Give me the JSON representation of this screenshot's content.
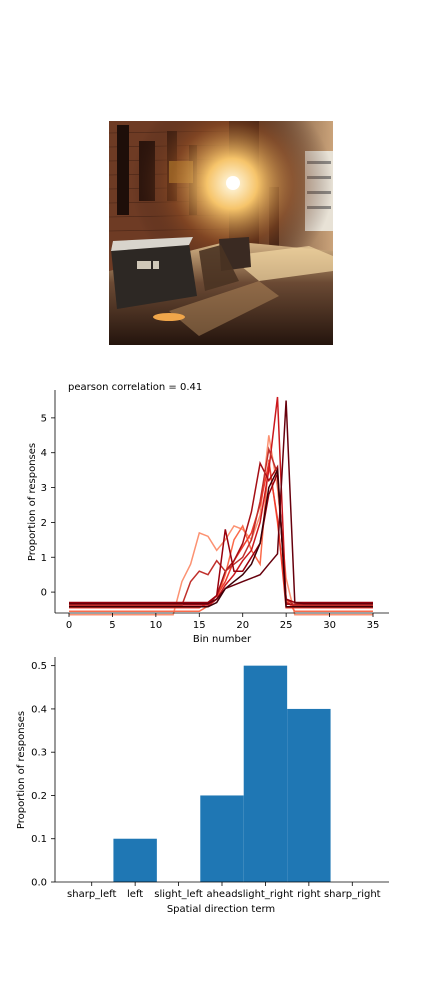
{
  "photo": {
    "description": "night alley with dumpsters and a bright street light",
    "colors": {
      "wall_dark": "#2a1410",
      "brick": "#7a4328",
      "light": "#fff6d8",
      "ground": "#3b2418"
    }
  },
  "chart_data": [
    {
      "type": "line",
      "title": "pearson correlation = 0.41",
      "xlabel": "Bin number",
      "ylabel": "Proportion of responses",
      "xlim": [
        0,
        35
      ],
      "ylim": [
        -0.6,
        5.8
      ],
      "xticks": [
        0,
        5,
        10,
        15,
        20,
        25,
        30,
        35
      ],
      "yticks": [
        0,
        1,
        2,
        3,
        4,
        5
      ],
      "x": [
        0,
        1,
        2,
        3,
        4,
        5,
        6,
        7,
        8,
        9,
        10,
        11,
        12,
        13,
        14,
        15,
        16,
        17,
        18,
        19,
        20,
        21,
        22,
        23,
        24,
        25,
        26,
        27,
        28,
        29,
        30,
        31,
        32,
        33,
        34,
        35
      ],
      "legend": "none",
      "series": [
        {
          "color": "#fc9272",
          "values": [
            -0.65,
            -0.65,
            -0.65,
            -0.65,
            -0.65,
            -0.65,
            -0.65,
            -0.65,
            -0.65,
            -0.65,
            -0.65,
            -0.65,
            -0.65,
            0.3,
            0.8,
            1.7,
            1.6,
            1.2,
            1.5,
            1.9,
            1.8,
            1.5,
            2.2,
            4.5,
            3.0,
            0.4,
            -0.65,
            -0.65,
            -0.65,
            -0.65,
            -0.65,
            -0.65,
            -0.65,
            -0.65,
            -0.65,
            -0.65
          ]
        },
        {
          "color": "#fb6a4a",
          "values": [
            -0.55,
            -0.55,
            -0.55,
            -0.55,
            -0.55,
            -0.55,
            -0.55,
            -0.55,
            -0.55,
            -0.55,
            -0.55,
            -0.55,
            -0.55,
            -0.55,
            -0.55,
            -0.55,
            -0.4,
            -0.2,
            0.5,
            1.5,
            1.9,
            1.2,
            0.8,
            3.8,
            2.0,
            -0.2,
            -0.55,
            -0.55,
            -0.55,
            -0.55,
            -0.55,
            -0.55,
            -0.55,
            -0.55,
            -0.55,
            -0.55
          ]
        },
        {
          "color": "#ef3b2c",
          "values": [
            -0.45,
            -0.45,
            -0.45,
            -0.45,
            -0.45,
            -0.45,
            -0.45,
            -0.45,
            -0.45,
            -0.45,
            -0.45,
            -0.45,
            -0.45,
            -0.45,
            -0.45,
            -0.45,
            -0.3,
            -0.1,
            0.3,
            0.9,
            1.3,
            1.7,
            2.5,
            3.7,
            2.1,
            -0.45,
            -0.45,
            -0.45,
            -0.45,
            -0.45,
            -0.45,
            -0.45,
            -0.45,
            -0.45,
            -0.45,
            -0.45
          ]
        },
        {
          "color": "#cb181d",
          "values": [
            -0.4,
            -0.4,
            -0.4,
            -0.4,
            -0.4,
            -0.4,
            -0.4,
            -0.4,
            -0.4,
            -0.4,
            -0.4,
            -0.4,
            -0.4,
            -0.4,
            -0.4,
            -0.4,
            -0.4,
            -0.2,
            0.2,
            0.5,
            0.9,
            1.2,
            2.0,
            3.5,
            5.6,
            -0.3,
            -0.4,
            -0.4,
            -0.4,
            -0.4,
            -0.4,
            -0.4,
            -0.4,
            -0.4,
            -0.4,
            -0.4
          ]
        },
        {
          "color": "#a50f15",
          "values": [
            -0.35,
            -0.35,
            -0.35,
            -0.35,
            -0.35,
            -0.35,
            -0.35,
            -0.35,
            -0.35,
            -0.35,
            -0.35,
            -0.35,
            -0.35,
            -0.35,
            -0.35,
            -0.35,
            -0.35,
            -0.1,
            0.6,
            0.9,
            1.4,
            2.3,
            3.7,
            3.2,
            3.6,
            -0.35,
            -0.35,
            -0.35,
            -0.35,
            -0.35,
            -0.35,
            -0.35,
            -0.35,
            -0.35,
            -0.35,
            -0.35
          ]
        },
        {
          "color": "#c0302c",
          "values": [
            -0.38,
            -0.38,
            -0.38,
            -0.38,
            -0.38,
            -0.38,
            -0.38,
            -0.38,
            -0.38,
            -0.38,
            -0.38,
            -0.38,
            -0.38,
            -0.38,
            0.3,
            0.6,
            0.5,
            0.9,
            0.6,
            0.8,
            1.0,
            1.5,
            2.6,
            4.1,
            3.4,
            -0.2,
            -0.38,
            -0.38,
            -0.38,
            -0.38,
            -0.38,
            -0.38,
            -0.38,
            -0.38,
            -0.38,
            -0.38
          ]
        },
        {
          "color": "#99000d",
          "values": [
            -0.3,
            -0.3,
            -0.3,
            -0.3,
            -0.3,
            -0.3,
            -0.3,
            -0.3,
            -0.3,
            -0.3,
            -0.3,
            -0.3,
            -0.3,
            -0.3,
            -0.3,
            -0.3,
            -0.3,
            -0.1,
            1.8,
            0.6,
            0.6,
            1.0,
            1.4,
            2.8,
            3.4,
            -0.2,
            -0.3,
            -0.3,
            -0.3,
            -0.3,
            -0.3,
            -0.3,
            -0.3,
            -0.3,
            -0.3,
            -0.3
          ]
        },
        {
          "color": "#67000d",
          "values": [
            -0.33,
            -0.33,
            -0.33,
            -0.33,
            -0.33,
            -0.33,
            -0.33,
            -0.33,
            -0.33,
            -0.33,
            -0.33,
            -0.33,
            -0.33,
            -0.33,
            -0.33,
            -0.33,
            -0.33,
            -0.2,
            0.1,
            0.2,
            0.3,
            0.4,
            0.5,
            0.8,
            1.1,
            5.5,
            -0.3,
            -0.33,
            -0.33,
            -0.33,
            -0.33,
            -0.33,
            -0.33,
            -0.33,
            -0.33,
            -0.33
          ]
        },
        {
          "color": "#3d0008",
          "values": [
            -0.42,
            -0.42,
            -0.42,
            -0.42,
            -0.42,
            -0.42,
            -0.42,
            -0.42,
            -0.42,
            -0.42,
            -0.42,
            -0.42,
            -0.42,
            -0.42,
            -0.42,
            -0.42,
            -0.42,
            -0.3,
            0.1,
            0.3,
            0.5,
            0.8,
            1.4,
            3.0,
            3.5,
            -0.42,
            -0.42,
            -0.42,
            -0.42,
            -0.42,
            -0.42,
            -0.42,
            -0.42,
            -0.42,
            -0.42,
            -0.42
          ]
        }
      ]
    },
    {
      "type": "bar",
      "xlabel": "Spatial direction term",
      "ylabel": "Proportion of responses",
      "categories": [
        "sharp_left",
        "left",
        "slight_left",
        "ahead",
        "slight_right",
        "right",
        "sharp_right"
      ],
      "values": [
        0.0,
        0.1,
        0.0,
        0.2,
        0.5,
        0.4,
        0.0
      ],
      "ylim": [
        0,
        0.52
      ],
      "yticks": [
        "0.0",
        "0.1",
        "0.2",
        "0.3",
        "0.4",
        "0.5"
      ],
      "bar_color": "#1f77b4",
      "legend": "none"
    }
  ]
}
